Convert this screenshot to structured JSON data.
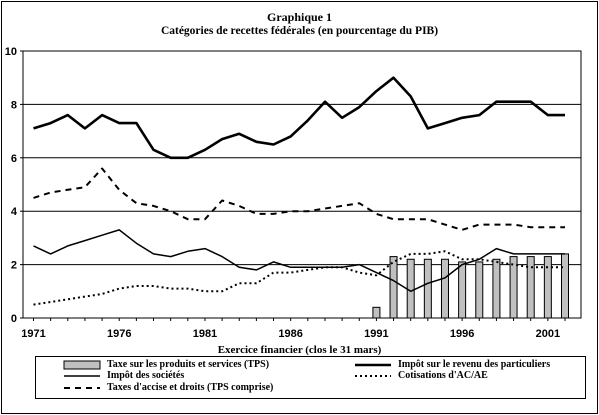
{
  "chart_data": {
    "type": "line",
    "title": "Graphique 1",
    "subtitle": "Catégories de recettes fédérales (en pourcentage du PIB)",
    "xlabel": "Exercice financier (clos le 31 mars)",
    "ylabel": "",
    "xlim": [
      1971,
      2002
    ],
    "ylim": [
      0,
      10
    ],
    "yticks": [
      0,
      2,
      4,
      6,
      8,
      10
    ],
    "xticks": [
      1971,
      1976,
      1981,
      1986,
      1991,
      1996,
      2001
    ],
    "grid": "horizontal",
    "legend_position": "bottom",
    "x": [
      1971,
      1972,
      1973,
      1974,
      1975,
      1976,
      1977,
      1978,
      1979,
      1980,
      1981,
      1982,
      1983,
      1984,
      1985,
      1986,
      1987,
      1988,
      1989,
      1990,
      1991,
      1992,
      1993,
      1994,
      1995,
      1996,
      1997,
      1998,
      1999,
      2000,
      2001,
      2002
    ],
    "series": [
      {
        "name": "Taxe sur les produits et services (TPS)",
        "style": "bar",
        "x": [
          1991,
          1992,
          1993,
          1994,
          1995,
          1996,
          1997,
          1998,
          1999,
          2000,
          2001,
          2002
        ],
        "values": [
          0.4,
          2.3,
          2.2,
          2.2,
          2.2,
          2.1,
          2.1,
          2.2,
          2.3,
          2.3,
          2.3,
          2.4
        ]
      },
      {
        "name": "Impôt sur le revenu des particuliers",
        "style": "thick-solid",
        "values": [
          7.1,
          7.3,
          7.6,
          7.1,
          7.6,
          7.3,
          7.3,
          6.3,
          6.0,
          6.0,
          6.3,
          6.7,
          6.9,
          6.6,
          6.5,
          6.8,
          7.4,
          8.1,
          7.5,
          7.9,
          8.5,
          9.0,
          8.3,
          7.1,
          7.3,
          7.5,
          7.6,
          8.1,
          8.1,
          8.1,
          7.6,
          7.6
        ]
      },
      {
        "name": "Impôt des sociétés",
        "style": "thin-solid",
        "values": [
          2.7,
          2.4,
          2.7,
          2.9,
          3.1,
          3.3,
          2.8,
          2.4,
          2.3,
          2.5,
          2.6,
          2.3,
          1.9,
          1.8,
          2.1,
          1.9,
          1.9,
          1.9,
          1.9,
          2.0,
          1.7,
          1.4,
          1.0,
          1.3,
          1.5,
          2.0,
          2.2,
          2.6,
          2.4,
          2.4,
          2.4,
          2.4
        ]
      },
      {
        "name": "Cotisations d'AC/AE",
        "style": "dotted",
        "values": [
          0.5,
          0.6,
          0.7,
          0.8,
          0.9,
          1.1,
          1.2,
          1.2,
          1.1,
          1.1,
          1.0,
          1.0,
          1.3,
          1.3,
          1.7,
          1.7,
          1.8,
          1.9,
          1.9,
          1.7,
          1.6,
          2.1,
          2.4,
          2.4,
          2.5,
          2.2,
          2.2,
          2.1,
          2.0,
          1.9,
          1.9,
          1.9
        ]
      },
      {
        "name": "Taxes d'accise et droits (TPS comprise)",
        "style": "dashed",
        "values": [
          4.5,
          4.7,
          4.8,
          4.9,
          5.6,
          4.8,
          4.3,
          4.2,
          4.0,
          3.7,
          3.7,
          4.4,
          4.2,
          3.9,
          3.9,
          4.0,
          4.0,
          4.1,
          4.2,
          4.3,
          3.9,
          3.7,
          3.7,
          3.7,
          3.5,
          3.3,
          3.5,
          3.5,
          3.5,
          3.4,
          3.4,
          3.4
        ]
      }
    ]
  }
}
